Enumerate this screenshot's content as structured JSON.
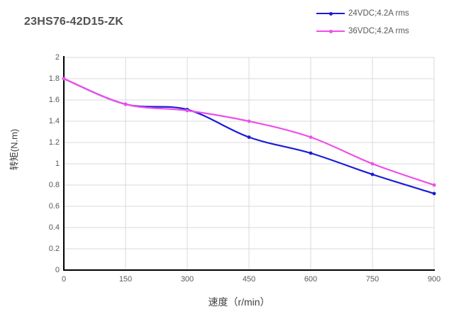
{
  "title": "23HS76-42D15-ZK",
  "legend": {
    "items": [
      {
        "label": "24VDC;4.2A rms",
        "color": "#1b1bd7"
      },
      {
        "label": "36VDC;4.2A rms",
        "color": "#ee4fe8"
      }
    ]
  },
  "chart_data": {
    "type": "line",
    "title": "23HS76-42D15-ZK",
    "xlabel": "速度（r/min）",
    "ylabel": "转矩(N.m)",
    "xlim": [
      0,
      900
    ],
    "ylim": [
      0,
      2
    ],
    "x_ticks": [
      0,
      150,
      300,
      450,
      600,
      750,
      900
    ],
    "y_ticks": [
      0,
      0.2,
      0.4,
      0.6,
      0.8,
      1,
      1.2,
      1.4,
      1.6,
      1.8,
      2
    ],
    "y_tick_labels": [
      "0",
      "0.2",
      "0.4",
      "0.6",
      "0.8",
      "1",
      "1.2",
      "1.4",
      "1.6",
      "1.8",
      "2"
    ],
    "grid": true,
    "legend_position": "top-right",
    "x": [
      0,
      150,
      300,
      450,
      600,
      750,
      900
    ],
    "series": [
      {
        "name": "24VDC;4.2A rms",
        "color": "#1b1bd7",
        "values": [
          1.8,
          1.56,
          1.51,
          1.25,
          1.1,
          0.9,
          0.72
        ]
      },
      {
        "name": "36VDC;4.2A rms",
        "color": "#ee4fe8",
        "values": [
          1.8,
          1.56,
          1.5,
          1.4,
          1.25,
          1.0,
          0.8
        ]
      }
    ],
    "styles": {
      "grid_color": "#d9d9d9",
      "axis_color": "#000000",
      "tick_label_color": "#595959",
      "title_color": "#515151"
    }
  }
}
